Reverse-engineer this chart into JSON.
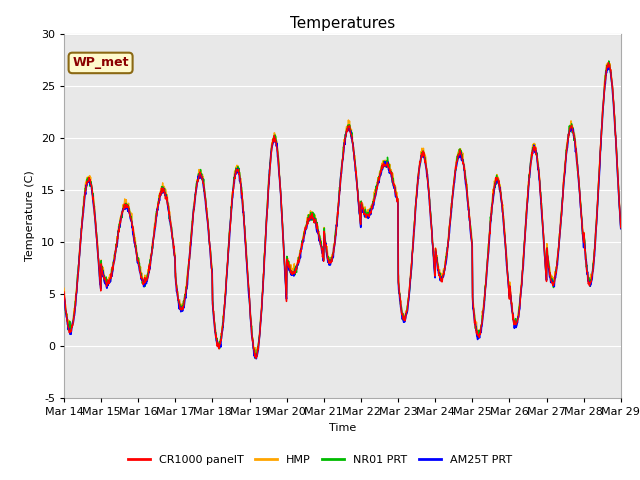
{
  "title": "Temperatures",
  "xlabel": "Time",
  "ylabel": "Temperature (C)",
  "ylim": [
    -5,
    30
  ],
  "yticks": [
    -5,
    0,
    5,
    10,
    15,
    20,
    25,
    30
  ],
  "xtick_labels": [
    "Mar 14",
    "Mar 15",
    "Mar 16",
    "Mar 17",
    "Mar 18",
    "Mar 19",
    "Mar 20",
    "Mar 21",
    "Mar 22",
    "Mar 23",
    "Mar 24",
    "Mar 25",
    "Mar 26",
    "Mar 27",
    "Mar 28",
    "Mar 29"
  ],
  "colors": {
    "CR1000": "#ff0000",
    "HMP": "#ffa500",
    "NR01": "#00bb00",
    "AM25T": "#0000ff"
  },
  "legend_labels": [
    "CR1000 panelT",
    "HMP",
    "NR01 PRT",
    "AM25T PRT"
  ],
  "wp_met_text": "WP_met",
  "wp_met_bg": "#fffacd",
  "wp_met_border": "#8b6914",
  "wp_met_text_color": "#8b0000",
  "bg_color": "#e8e8e8",
  "title_fontsize": 11,
  "axis_fontsize": 8,
  "legend_fontsize": 8
}
